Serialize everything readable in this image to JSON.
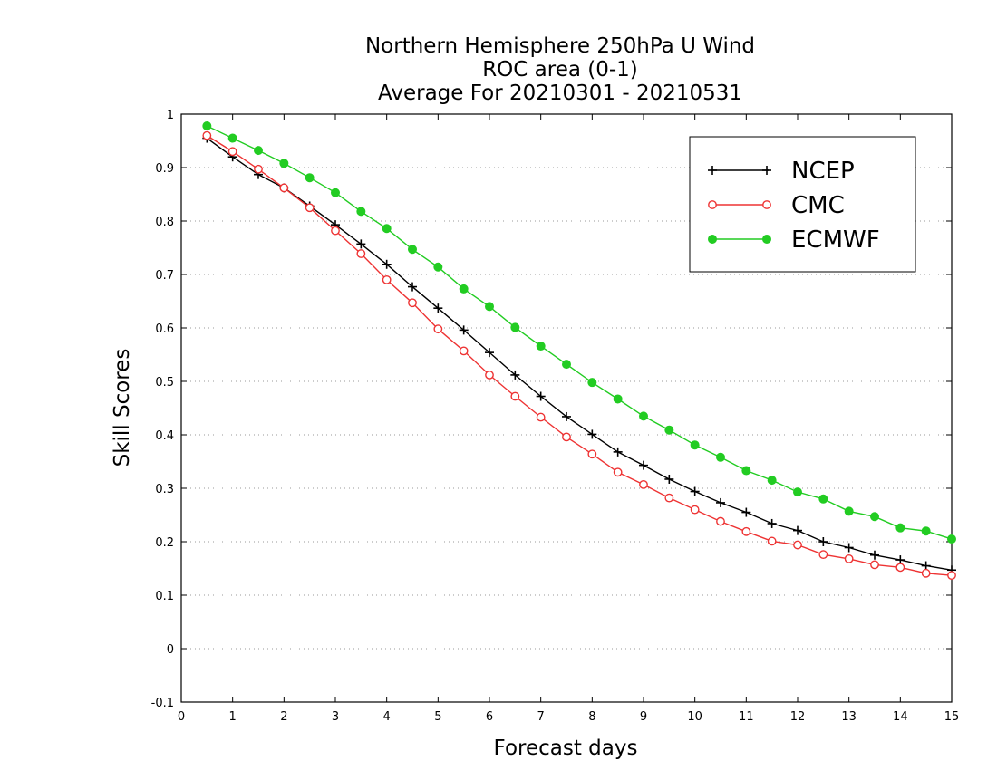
{
  "chart_data": {
    "type": "line",
    "title_lines": [
      "Northern Hemisphere 250hPa U Wind",
      "ROC area (0-1)",
      "Average For 20210301 - 20210531"
    ],
    "xlabel": "Forecast days",
    "ylabel": "Skill Scores",
    "xlim": [
      0,
      15
    ],
    "ylim": [
      -0.1,
      1
    ],
    "x_ticks": [
      0,
      1,
      2,
      3,
      4,
      5,
      6,
      7,
      8,
      9,
      10,
      11,
      12,
      13,
      14,
      15
    ],
    "x_tick_labels": [
      "0",
      "1",
      "2",
      "3",
      "4",
      "5",
      "6",
      "7",
      "8",
      "9",
      "10",
      "11",
      "12",
      "13",
      "14",
      "15"
    ],
    "y_ticks": [
      -0.1,
      0,
      0.1,
      0.2,
      0.3,
      0.4,
      0.5,
      0.6,
      0.7,
      0.8,
      0.9,
      1
    ],
    "y_tick_labels": [
      "-0.1",
      "0",
      "0.1",
      "0.2",
      "0.3",
      "0.4",
      "0.5",
      "0.6",
      "0.7",
      "0.8",
      "0.9",
      "1"
    ],
    "grid": "dotted horizontal",
    "legend_position": "top-right",
    "x": [
      0.5,
      1.0,
      1.5,
      2.0,
      2.5,
      3.0,
      3.5,
      4.0,
      4.5,
      5.0,
      5.5,
      6.0,
      6.5,
      7.0,
      7.5,
      8.0,
      8.5,
      9.0,
      9.5,
      10.0,
      10.5,
      11.0,
      11.5,
      12.0,
      12.5,
      13.0,
      13.5,
      14.0,
      14.5,
      15.0
    ],
    "series": [
      {
        "name": "NCEP",
        "color": "#000000",
        "marker": "plus",
        "values": [
          0.955,
          0.92,
          0.887,
          0.862,
          0.828,
          0.793,
          0.757,
          0.719,
          0.677,
          0.637,
          0.596,
          0.554,
          0.512,
          0.472,
          0.434,
          0.401,
          0.368,
          0.343,
          0.317,
          0.294,
          0.273,
          0.255,
          0.234,
          0.221,
          0.2,
          0.189,
          0.175,
          0.166,
          0.155,
          0.147
        ]
      },
      {
        "name": "CMC",
        "color": "#ee3333",
        "marker": "open-circle",
        "values": [
          0.96,
          0.93,
          0.897,
          0.862,
          0.825,
          0.782,
          0.739,
          0.69,
          0.647,
          0.598,
          0.557,
          0.512,
          0.472,
          0.433,
          0.396,
          0.364,
          0.33,
          0.307,
          0.282,
          0.26,
          0.238,
          0.219,
          0.201,
          0.194,
          0.176,
          0.168,
          0.157,
          0.152,
          0.141,
          0.137
        ]
      },
      {
        "name": "ECMWF",
        "color": "#22cc22",
        "marker": "filled-circle",
        "values": [
          0.978,
          0.955,
          0.932,
          0.908,
          0.881,
          0.853,
          0.818,
          0.786,
          0.747,
          0.714,
          0.673,
          0.64,
          0.601,
          0.566,
          0.532,
          0.498,
          0.467,
          0.435,
          0.409,
          0.381,
          0.358,
          0.333,
          0.315,
          0.293,
          0.28,
          0.257,
          0.247,
          0.226,
          0.22,
          0.205
        ]
      }
    ]
  }
}
